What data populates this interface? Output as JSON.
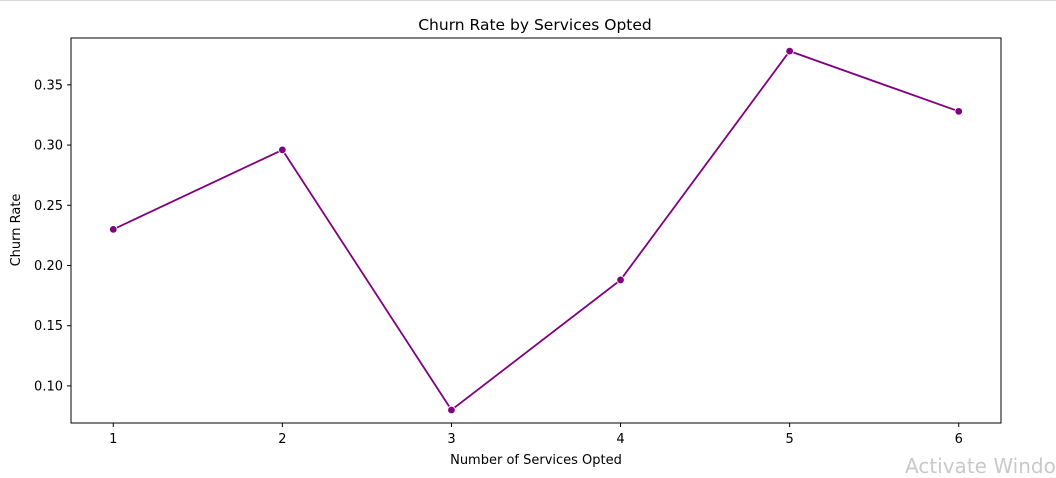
{
  "chart_data": {
    "type": "line",
    "title": "Churn Rate by Services Opted",
    "xlabel": "Number of Services Opted",
    "ylabel": "Churn Rate",
    "x": [
      1,
      2,
      3,
      4,
      5,
      6
    ],
    "x_tick_labels": [
      "1",
      "2",
      "3",
      "4",
      "5",
      "6"
    ],
    "y_ticks": [
      0.1,
      0.15,
      0.2,
      0.25,
      0.3,
      0.35
    ],
    "y_tick_labels": [
      "0.10",
      "0.15",
      "0.20",
      "0.25",
      "0.30",
      "0.35"
    ],
    "series": [
      {
        "values": [
          0.23,
          0.296,
          0.08,
          0.188,
          0.378,
          0.328
        ],
        "color": "#800080",
        "marker": "circle"
      }
    ],
    "xlim": [
      0.75,
      6.25
    ],
    "ylim": [
      0.0692,
      0.3889
    ],
    "grid": false,
    "legend": "none"
  },
  "overlay": {
    "watermark_text": "Activate Windows"
  }
}
